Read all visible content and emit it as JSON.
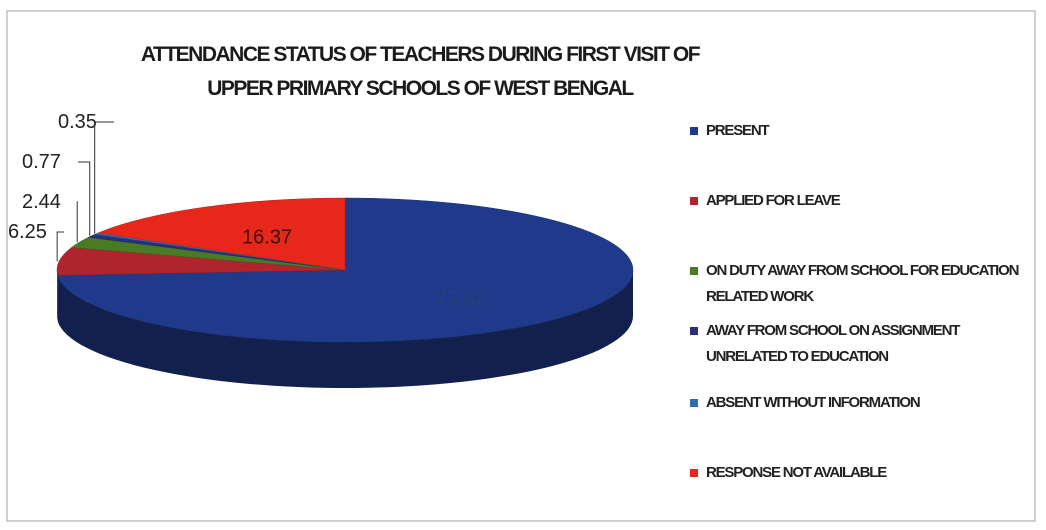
{
  "chart_data": {
    "type": "pie",
    "title_line1": "ATTENDANCE STATUS OF TEACHERS DURING FIRST VISIT OF",
    "title_line2": "UPPER PRIMARY SCHOOLS OF WEST BENGAL",
    "legend_position": "right",
    "slices": [
      {
        "label": "PRESENT",
        "value": 73.82,
        "value_text": "73.82",
        "color": "#1f3a8a"
      },
      {
        "label": "APPLIED FOR LEAVE",
        "value": 6.25,
        "value_text": "6.25",
        "color": "#b0242e"
      },
      {
        "label": "ON DUTY AWAY FROM SCHOOL FOR EDUCATION RELATED WORK",
        "value": 2.44,
        "value_text": "2.44",
        "color": "#4a7a23"
      },
      {
        "label": "AWAY FROM SCHOOL ON ASSIGNMENT UNRELATED TO EDUCATION",
        "value": 0.77,
        "value_text": "0.77",
        "color": "#2a2f7a"
      },
      {
        "label": "ABSENT WITHOUT INFORMATION",
        "value": 0.35,
        "value_text": "0.35",
        "color": "#2f6fb0"
      },
      {
        "label": "RESPONSE NOT AVAILABLE",
        "value": 16.37,
        "value_text": "16.37",
        "color": "#e8271b"
      }
    ]
  }
}
